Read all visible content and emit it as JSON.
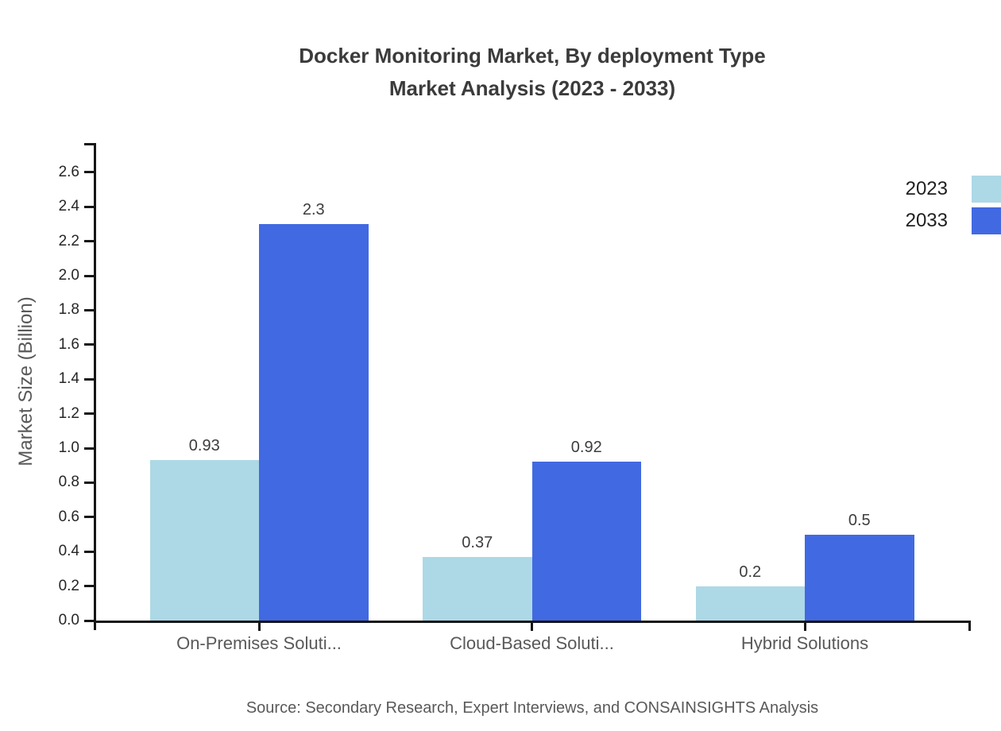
{
  "title": {
    "line1": "Docker Monitoring Market, By deployment Type",
    "line2": "Market Analysis (2023 - 2033)"
  },
  "source": "Source: Secondary Research, Expert Interviews, and CONSAINSIGHTS Analysis",
  "colors": {
    "series_2023": "#ADD8E6",
    "series_2033": "#4169E1",
    "axis": "#161616",
    "text_dark": "#262626",
    "text_gray": "#595959"
  },
  "chart_data": {
    "type": "bar",
    "title": "Docker Monitoring Market, By deployment Type Market Analysis (2023 - 2033)",
    "xlabel": "",
    "ylabel": "Market Size (Billion)",
    "categories": [
      "On-Premises Soluti...",
      "Cloud-Based Soluti...",
      "Hybrid Solutions"
    ],
    "series": [
      {
        "name": "2023",
        "color": "#ADD8E6",
        "values": [
          0.93,
          0.37,
          0.2
        ]
      },
      {
        "name": "2033",
        "color": "#4169E1",
        "values": [
          2.3,
          0.92,
          0.5
        ]
      }
    ],
    "yticks": [
      0.0,
      0.2,
      0.4,
      0.6,
      0.8,
      1.0,
      1.2,
      1.4,
      1.6,
      1.8,
      2.0,
      2.2,
      2.4,
      2.6
    ],
    "ylim": [
      0,
      2.77
    ],
    "grid": false,
    "legend_position": "top-right",
    "bar_value_labels": true
  }
}
